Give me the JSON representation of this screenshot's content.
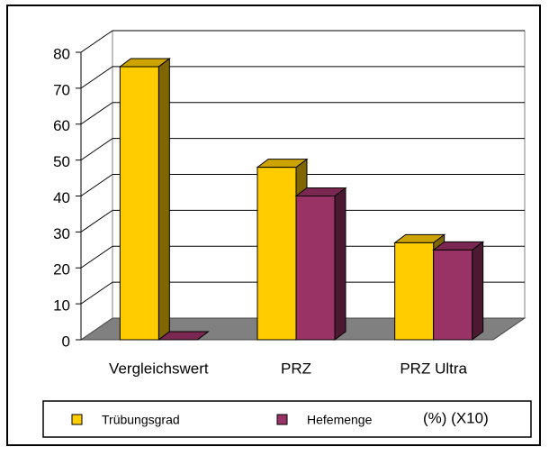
{
  "chart_data": {
    "type": "bar3d",
    "categories": [
      "Vergleichswert",
      "PRZ",
      "PRZ Ultra"
    ],
    "series": [
      {
        "name": "Trübungsgrad",
        "color": "#ffcc00",
        "values": [
          76,
          48,
          27
        ]
      },
      {
        "name": "Hefemenge",
        "color": "#993366",
        "values": [
          0,
          40,
          25
        ]
      }
    ],
    "ylim": [
      0,
      80
    ],
    "yticks": [
      0,
      10,
      20,
      30,
      40,
      50,
      60,
      70,
      80
    ],
    "grid": true,
    "annotation": "(%) (X10)"
  }
}
